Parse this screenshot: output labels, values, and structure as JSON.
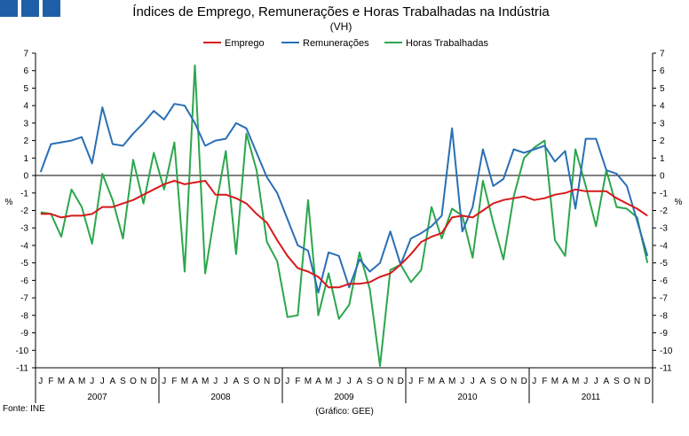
{
  "logo": {
    "color": "#1f5fa8"
  },
  "chart_data": {
    "type": "line",
    "title": "Índices de Emprego, Remunerações e Horas Trabalhadas na Indústria",
    "subtitle": "(VH)",
    "ylabel_left": "%",
    "ylabel_right": "%",
    "ylim": [
      -11,
      7
    ],
    "yticks": [
      7,
      6,
      5,
      4,
      3,
      2,
      1,
      0,
      -1,
      -2,
      -3,
      -4,
      -5,
      -6,
      -7,
      -8,
      -9,
      -10,
      -11
    ],
    "month_labels": [
      "J",
      "F",
      "M",
      "A",
      "M",
      "J",
      "J",
      "A",
      "S",
      "O",
      "N",
      "D",
      "J",
      "F",
      "M",
      "A",
      "M",
      "J",
      "J",
      "A",
      "S",
      "O",
      "N",
      "D",
      "J",
      "F",
      "M",
      "A",
      "M",
      "J",
      "J",
      "A",
      "S",
      "O",
      "N",
      "D",
      "J",
      "F",
      "M",
      "A",
      "M",
      "J",
      "J",
      "A",
      "S",
      "O",
      "N",
      "D",
      "J",
      "F",
      "M",
      "A",
      "M",
      "J",
      "J",
      "A",
      "S",
      "O",
      "N",
      "D"
    ],
    "years": [
      "2007",
      "2008",
      "2009",
      "2010",
      "2011"
    ],
    "source": "Fonte: INE",
    "credit": "(Gráfico: GEE)",
    "series": [
      {
        "name": "Emprego",
        "color": "#d7191c",
        "values": [
          -2.2,
          -2.2,
          -2.4,
          -2.3,
          -2.3,
          -2.2,
          -1.8,
          -1.8,
          -1.6,
          -1.4,
          -1.1,
          -0.8,
          -0.5,
          -0.3,
          -0.5,
          -0.4,
          -0.3,
          -1.1,
          -1.1,
          -1.3,
          -1.6,
          -2.2,
          -2.7,
          -3.7,
          -4.6,
          -5.3,
          -5.5,
          -5.8,
          -6.4,
          -6.4,
          -6.2,
          -6.2,
          -6.1,
          -5.8,
          -5.6,
          -5.1,
          -4.5,
          -3.8,
          -3.5,
          -3.3,
          -2.4,
          -2.3,
          -2.4,
          -2.0,
          -1.6,
          -1.4,
          -1.3,
          -1.2,
          -1.4,
          -1.3,
          -1.1,
          -1.0,
          -0.8,
          -0.9,
          -0.9,
          -0.9,
          -1.3,
          -1.6,
          -1.9,
          -2.3
        ]
      },
      {
        "name": "Remunerações",
        "color": "#2a6fb4",
        "values": [
          0.2,
          1.8,
          1.9,
          2.0,
          2.2,
          0.7,
          3.9,
          1.8,
          1.7,
          2.4,
          3.0,
          3.7,
          3.2,
          4.1,
          4.0,
          3.0,
          1.7,
          2.0,
          2.1,
          3.0,
          2.7,
          1.3,
          -0.1,
          -1.0,
          -2.5,
          -4.0,
          -4.3,
          -6.7,
          -4.4,
          -4.6,
          -6.4,
          -4.8,
          -5.5,
          -5.0,
          -3.2,
          -5.1,
          -3.6,
          -3.3,
          -2.9,
          -2.3,
          2.7,
          -3.2,
          -1.8,
          1.5,
          -0.6,
          -0.2,
          1.5,
          1.3,
          1.5,
          1.7,
          0.8,
          1.4,
          -1.9,
          2.1,
          2.1,
          0.3,
          0.1,
          -0.6,
          -2.6,
          -4.6
        ]
      },
      {
        "name": "Horas Trabalhadas",
        "color": "#2ca64d",
        "values": [
          -2.1,
          -2.2,
          -3.5,
          -0.8,
          -1.8,
          -3.9,
          0.1,
          -1.4,
          -3.6,
          0.9,
          -1.6,
          1.3,
          -0.8,
          1.9,
          -5.5,
          6.3,
          -5.6,
          -1.9,
          1.4,
          -4.5,
          2.4,
          0.3,
          -3.8,
          -4.9,
          -8.1,
          -8.0,
          -1.4,
          -8.0,
          -5.6,
          -8.2,
          -7.4,
          -4.4,
          -6.5,
          -10.9,
          -5.4,
          -5.1,
          -6.1,
          -5.4,
          -1.8,
          -3.6,
          -1.9,
          -2.3,
          -4.7,
          -0.3,
          -2.7,
          -4.8,
          -1.2,
          1.0,
          1.6,
          2.0,
          -3.7,
          -4.6,
          1.5,
          -0.6,
          -2.9,
          0.3,
          -1.8,
          -1.9,
          -2.4,
          -5.0
        ]
      }
    ]
  }
}
